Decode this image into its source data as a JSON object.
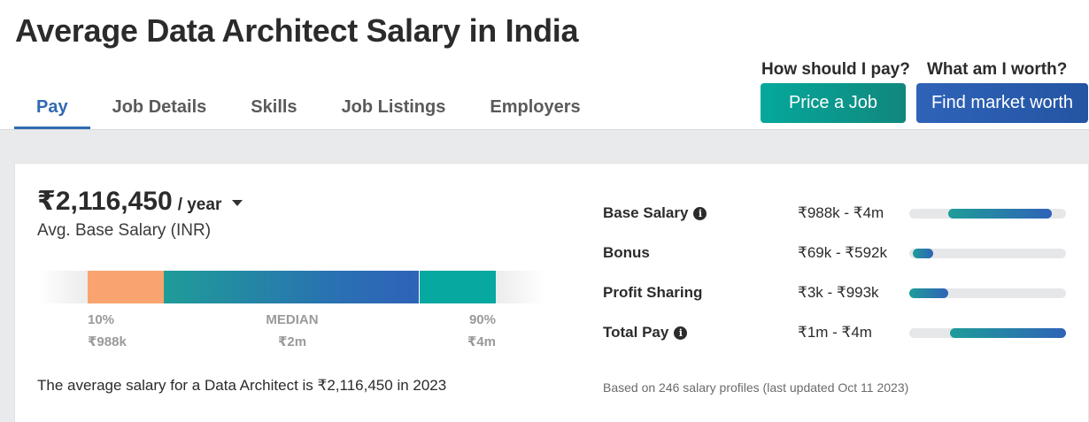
{
  "page": {
    "title": "Average Data Architect Salary in India"
  },
  "tabs": [
    {
      "label": "Pay",
      "active": true
    },
    {
      "label": "Job Details",
      "active": false
    },
    {
      "label": "Skills",
      "active": false
    },
    {
      "label": "Job Listings",
      "active": false
    },
    {
      "label": "Employers",
      "active": false
    }
  ],
  "cta": {
    "price": {
      "question": "How should I pay?",
      "button": "Price a Job",
      "color": "#0aa095"
    },
    "market": {
      "question": "What am I worth?",
      "button": "Find market worth",
      "color": "#2c5eb3"
    }
  },
  "summary": {
    "value": "₹2,116,450",
    "period": "/ year",
    "label": "Avg. Base Salary (INR)",
    "sentence": "The average salary for a Data Architect is ₹2,116,450 in 2023"
  },
  "percentiles": [
    {
      "name": "10%",
      "value": "₹988k"
    },
    {
      "name": "MEDIAN",
      "value": "₹2m"
    },
    {
      "name": "90%",
      "value": "₹4m"
    }
  ],
  "compensation": [
    {
      "label": "Base Salary",
      "info": true,
      "range": "₹988k - ₹4m",
      "fill_start": 0.25,
      "fill_end": 0.91
    },
    {
      "label": "Bonus",
      "info": false,
      "range": "₹69k - ₹592k",
      "fill_start": 0.02,
      "fill_end": 0.15
    },
    {
      "label": "Profit Sharing",
      "info": false,
      "range": "₹3k - ₹993k",
      "fill_start": 0.0,
      "fill_end": 0.25
    },
    {
      "label": "Total Pay",
      "info": true,
      "range": "₹1m - ₹4m",
      "fill_start": 0.26,
      "fill_end": 1.0
    }
  ],
  "footnote": "Based on 246 salary profiles (last updated Oct 11 2023)",
  "colors": {
    "accent_blue": "#2f6ab3",
    "teal": "#06a89f",
    "orange": "#f9a46f"
  },
  "icons": {
    "info": "info-icon",
    "dropdown": "caret-down-icon"
  }
}
